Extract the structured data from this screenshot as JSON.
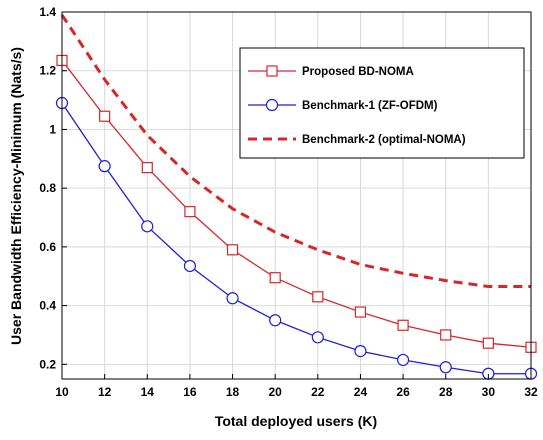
{
  "chart_data": {
    "type": "line",
    "title": "",
    "xlabel": "Total deployed users (K)",
    "ylabel": "User Bandwidth Efficiency-Minimum (Nats/s)",
    "xlim": [
      10,
      32
    ],
    "ylim": [
      0.15,
      1.4
    ],
    "xticks": [
      "10",
      "12",
      "14",
      "16",
      "18",
      "20",
      "22",
      "24",
      "26",
      "28",
      "30",
      "32"
    ],
    "yticks": [
      "0.2",
      "0.4",
      "0.6",
      "0.8",
      "1",
      "1.2",
      "1.4"
    ],
    "grid": true,
    "legend_position": "top-right",
    "x": [
      10,
      12,
      14,
      16,
      18,
      20,
      22,
      24,
      26,
      28,
      30,
      32
    ],
    "series": [
      {
        "name": "Proposed BD-NOMA",
        "color": "#d62728",
        "style": "solid",
        "marker": "square",
        "values": [
          1.235,
          1.045,
          0.87,
          0.72,
          0.59,
          0.495,
          0.43,
          0.378,
          0.333,
          0.3,
          0.272,
          0.258
        ]
      },
      {
        "name": "Benchmark-1 (ZF-OFDM)",
        "color": "#1f1fd6",
        "style": "solid",
        "marker": "circle",
        "values": [
          1.09,
          0.875,
          0.67,
          0.535,
          0.425,
          0.35,
          0.292,
          0.245,
          0.215,
          0.19,
          0.168,
          0.168
        ]
      },
      {
        "name": "Benchmark-2 (optimal-NOMA)",
        "color": "#d62728",
        "style": "dashed",
        "marker": "none",
        "values": [
          1.39,
          1.17,
          0.98,
          0.84,
          0.73,
          0.65,
          0.59,
          0.54,
          0.51,
          0.485,
          0.465,
          0.465
        ]
      }
    ]
  }
}
